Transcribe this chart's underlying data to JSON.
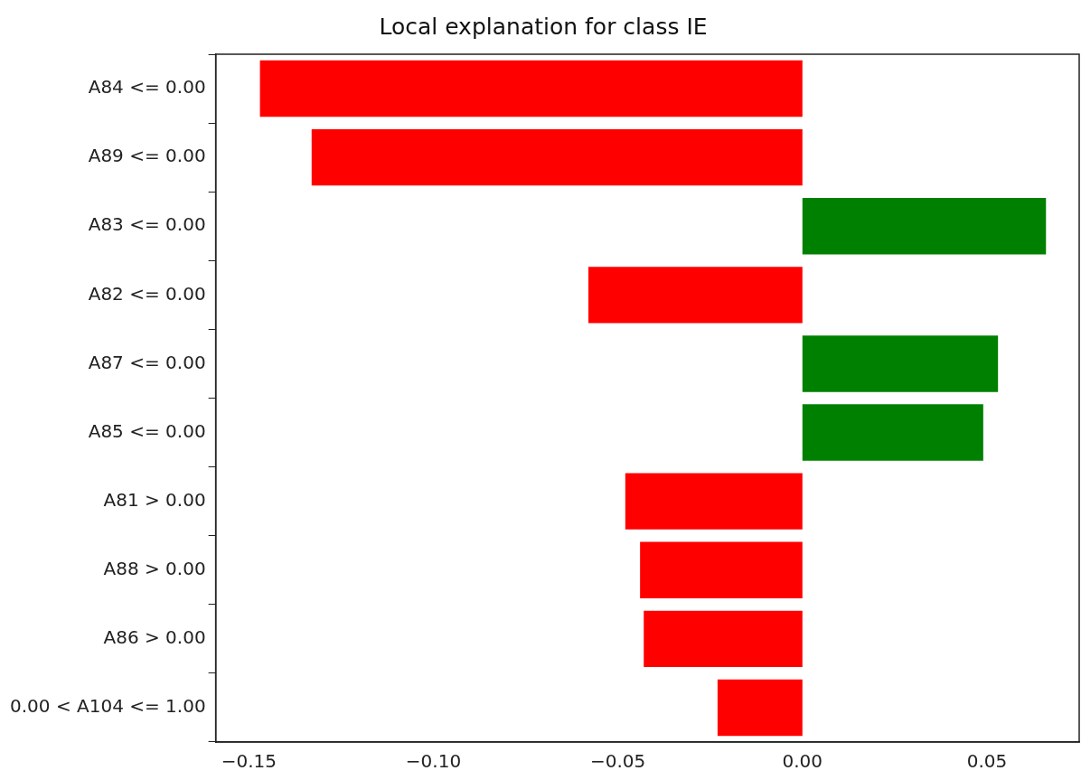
{
  "chart_data": {
    "type": "bar",
    "orientation": "horizontal",
    "title": "Local explanation for class IE",
    "categories": [
      "A84 <= 0.00",
      "A89 <= 0.00",
      "A83 <= 0.00",
      "A82 <= 0.00",
      "A87 <= 0.00",
      "A85 <= 0.00",
      "A81 > 0.00",
      "A88 > 0.00",
      "A86 > 0.00",
      "0.00 < A104 <= 1.00"
    ],
    "values": [
      -0.147,
      -0.133,
      0.066,
      -0.058,
      0.053,
      0.049,
      -0.048,
      -0.044,
      -0.043,
      -0.023
    ],
    "colors": [
      "#ff0000",
      "#ff0000",
      "#008000",
      "#ff0000",
      "#008000",
      "#008000",
      "#ff0000",
      "#ff0000",
      "#ff0000",
      "#ff0000"
    ],
    "xlim": [
      -0.159,
      0.075
    ],
    "xticks": [
      {
        "value": -0.15,
        "label": "−0.15"
      },
      {
        "value": -0.1,
        "label": "−0.10"
      },
      {
        "value": -0.05,
        "label": "−0.05"
      },
      {
        "value": 0,
        "label": "0.00"
      },
      {
        "value": 0.05,
        "label": "0.05"
      }
    ],
    "grid": false,
    "legend": false
  }
}
